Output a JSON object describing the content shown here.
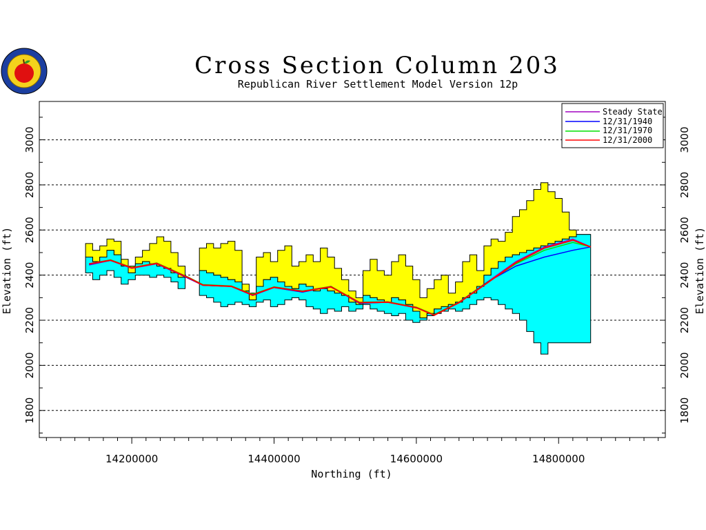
{
  "chart_data": {
    "type": "area",
    "title": "Cross Section Column 203",
    "subtitle": "Republican River Settlement Model Version 12p",
    "xlabel": "Northing (ft)",
    "ylabel": "Elevation (ft)",
    "xlim": [
      14070000,
      14950000
    ],
    "ylim": [
      1680,
      3170
    ],
    "x_ticks": [
      14200000,
      14400000,
      14600000,
      14800000
    ],
    "x_tick_labels": [
      "14200000",
      "14400000",
      "14600000",
      "14800000"
    ],
    "y_ticks": [
      1800,
      2000,
      2200,
      2400,
      2600,
      2800,
      3000
    ],
    "y_tick_labels": [
      "1800",
      "2000",
      "2200",
      "2400",
      "2600",
      "2800",
      "3000"
    ],
    "grid": "horizontal-dashed",
    "legend_position": "top-right",
    "colors": {
      "top_layer": "#ffff00",
      "bottom_layer": "#00ffff",
      "steady_state": "#a000c0",
      "y1940": "#0000ff",
      "y1970": "#00e000",
      "y2000": "#ff0000"
    },
    "layers": {
      "x": [
        14140000,
        14150000,
        14160000,
        14170000,
        14180000,
        14190000,
        14200000,
        14210000,
        14220000,
        14230000,
        14240000,
        14250000,
        14260000,
        14270000,
        14280000,
        14290000,
        14300000,
        14310000,
        14320000,
        14330000,
        14340000,
        14350000,
        14360000,
        14370000,
        14380000,
        14390000,
        14400000,
        14410000,
        14420000,
        14430000,
        14440000,
        14450000,
        14460000,
        14470000,
        14480000,
        14490000,
        14500000,
        14510000,
        14520000,
        14530000,
        14540000,
        14550000,
        14560000,
        14570000,
        14580000,
        14590000,
        14600000,
        14610000,
        14620000,
        14630000,
        14640000,
        14650000,
        14660000,
        14670000,
        14680000,
        14690000,
        14700000,
        14710000,
        14720000,
        14730000,
        14740000,
        14750000,
        14760000,
        14770000,
        14780000,
        14790000,
        14800000,
        14810000,
        14820000,
        14830000,
        14840000
      ],
      "land_surface": [
        2540,
        2510,
        2530,
        2560,
        2550,
        2470,
        2440,
        2480,
        2510,
        2540,
        2570,
        2550,
        2500,
        2440,
        null,
        null,
        2520,
        2540,
        2520,
        2540,
        2550,
        2510,
        2360,
        2320,
        2480,
        2500,
        2460,
        2510,
        2530,
        2440,
        2460,
        2490,
        2460,
        2520,
        2480,
        2430,
        2380,
        2330,
        2300,
        2420,
        2470,
        2420,
        2400,
        2460,
        2490,
        2440,
        2380,
        2300,
        2340,
        2380,
        2400,
        2320,
        2370,
        2460,
        2490,
        2420,
        2530,
        2560,
        2550,
        2590,
        2660,
        2690,
        2730,
        2780,
        2810,
        2770,
        2740,
        2680,
        2600,
        2560,
        2580
      ],
      "layer_boundary": [
        2480,
        2460,
        2480,
        2510,
        2490,
        2440,
        2410,
        2450,
        2460,
        2450,
        2440,
        2430,
        2410,
        2390,
        null,
        null,
        2420,
        2410,
        2400,
        2390,
        2380,
        2370,
        2330,
        2290,
        2350,
        2380,
        2390,
        2370,
        2350,
        2340,
        2360,
        2350,
        2330,
        2340,
        2330,
        2320,
        2310,
        2280,
        2270,
        2310,
        2300,
        2290,
        2280,
        2300,
        2290,
        2270,
        2240,
        2210,
        2230,
        2250,
        2260,
        2270,
        2280,
        2300,
        2320,
        2350,
        2400,
        2430,
        2460,
        2480,
        2490,
        2500,
        2510,
        2520,
        2530,
        2540,
        2550,
        2560,
        2570,
        2580,
        2580
      ],
      "base": [
        2410,
        2380,
        2400,
        2420,
        2390,
        2360,
        2380,
        2400,
        2400,
        2390,
        2400,
        2390,
        2370,
        2340,
        null,
        null,
        2310,
        2300,
        2280,
        2260,
        2270,
        2280,
        2270,
        2260,
        2280,
        2290,
        2260,
        2270,
        2290,
        2300,
        2290,
        2260,
        2250,
        2230,
        2250,
        2240,
        2260,
        2240,
        2250,
        2270,
        2250,
        2240,
        2230,
        2220,
        2230,
        2200,
        2190,
        2200,
        2220,
        2230,
        2240,
        2250,
        2240,
        2250,
        2270,
        2290,
        2300,
        2290,
        2270,
        2250,
        2230,
        2200,
        2150,
        2100,
        2050,
        2100,
        2100,
        2100,
        2100,
        2100,
        2100
      ]
    },
    "series": [
      {
        "name": "Steady State",
        "x": [
          14140000,
          14170000,
          14200000,
          14235000,
          14280000,
          14300000,
          14340000,
          14370000,
          14400000,
          14440000,
          14480000,
          14520000,
          14560000,
          14600000,
          14625000,
          14660000,
          14700000,
          14740000,
          14780000,
          14820000,
          14845000
        ],
        "y": [
          2445,
          2465,
          2430,
          2450,
          2385,
          2355,
          2350,
          2310,
          2345,
          2325,
          2350,
          2275,
          2280,
          2255,
          2225,
          2280,
          2370,
          2460,
          2525,
          2560,
          2525
        ]
      },
      {
        "name": "12/31/1940",
        "x": [
          14140000,
          14170000,
          14200000,
          14235000,
          14280000,
          14300000,
          14340000,
          14370000,
          14400000,
          14440000,
          14480000,
          14520000,
          14560000,
          14600000,
          14625000,
          14660000,
          14700000,
          14740000,
          14780000,
          14820000,
          14845000
        ],
        "y": [
          2448,
          2465,
          2432,
          2452,
          2385,
          2355,
          2350,
          2310,
          2345,
          2325,
          2350,
          2275,
          2280,
          2255,
          2225,
          2280,
          2370,
          2440,
          2480,
          2510,
          2525
        ]
      },
      {
        "name": "12/31/1970",
        "x": [
          14140000,
          14170000,
          14200000,
          14235000,
          14280000,
          14300000,
          14340000,
          14370000,
          14400000,
          14440000,
          14480000,
          14520000,
          14560000,
          14600000,
          14625000,
          14660000,
          14700000,
          14740000,
          14780000,
          14820000,
          14845000
        ],
        "y": [
          2450,
          2468,
          2434,
          2454,
          2390,
          2358,
          2352,
          2315,
          2348,
          2330,
          2350,
          2280,
          2282,
          2258,
          2225,
          2280,
          2368,
          2450,
          2510,
          2545,
          2525
        ]
      },
      {
        "name": "12/31/2000",
        "x": [
          14140000,
          14170000,
          14200000,
          14235000,
          14280000,
          14300000,
          14340000,
          14370000,
          14400000,
          14440000,
          14480000,
          14520000,
          14560000,
          14600000,
          14625000,
          14660000,
          14700000,
          14740000,
          14780000,
          14820000,
          14845000
        ],
        "y": [
          2450,
          2466,
          2432,
          2452,
          2388,
          2356,
          2350,
          2312,
          2346,
          2328,
          2348,
          2278,
          2280,
          2256,
          2222,
          2278,
          2366,
          2455,
          2520,
          2555,
          2525
        ]
      }
    ]
  }
}
